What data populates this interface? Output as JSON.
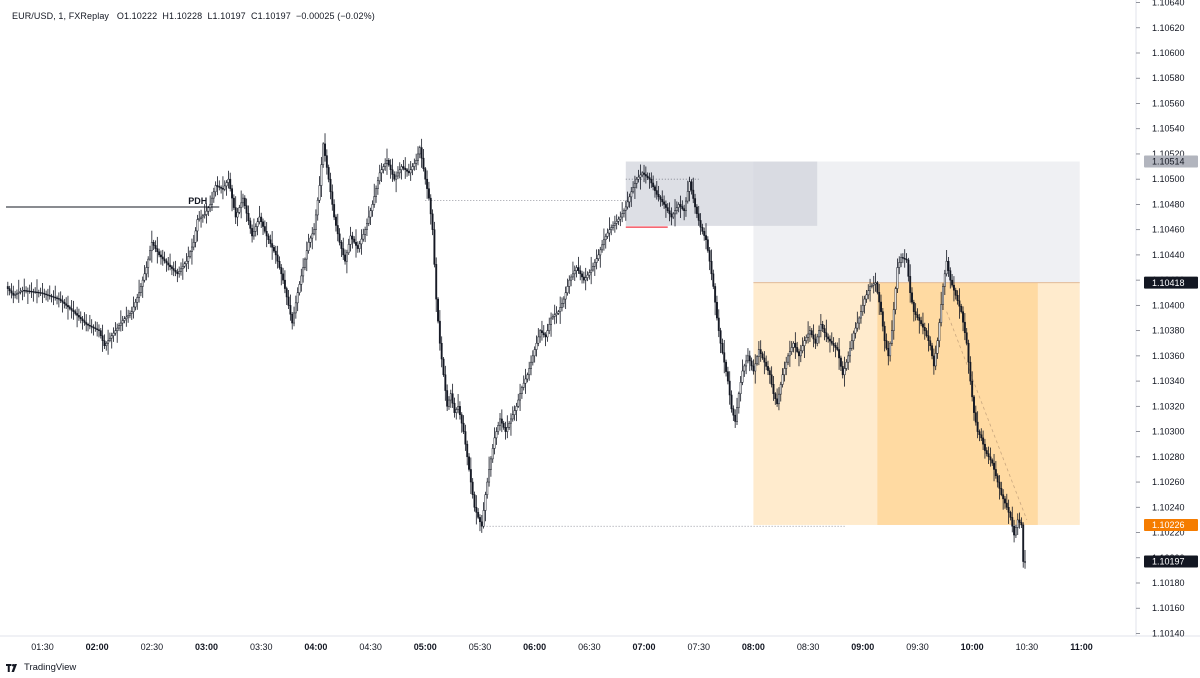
{
  "legend": {
    "symbol": "EUR/USD, 1, FXReplay",
    "open": "O1.10222",
    "high": "H1.10228",
    "low": "L1.10197",
    "close": "C1.10197",
    "change": "−0.00025 (−0.02%)"
  },
  "brand": {
    "name": "TradingView",
    "icon": "tradingview-logo-icon"
  },
  "chart_data": {
    "type": "candlestick",
    "title": "",
    "symbol": "EUR/USD",
    "timeframe": "1",
    "xlabel": "",
    "ylabel": "",
    "x_ticks": [
      "01:30",
      "02:00",
      "02:30",
      "03:00",
      "03:30",
      "04:00",
      "04:30",
      "05:00",
      "05:30",
      "06:00",
      "06:30",
      "07:00",
      "07:30",
      "08:00",
      "08:30",
      "09:00",
      "09:30",
      "10:00",
      "10:30",
      "11:00"
    ],
    "x_ticks_bold": [
      "02:00",
      "03:00",
      "04:00",
      "05:00",
      "06:00",
      "07:00",
      "08:00",
      "09:00",
      "10:00",
      "11:00"
    ],
    "y_ticks": [
      "1.10640",
      "1.10620",
      "1.10600",
      "1.10580",
      "1.10560",
      "1.10540",
      "1.10520",
      "1.10500",
      "1.10480",
      "1.10460",
      "1.10440",
      "1.10420",
      "1.10400",
      "1.10380",
      "1.10360",
      "1.10340",
      "1.10320",
      "1.10300",
      "1.10280",
      "1.10260",
      "1.10240",
      "1.10220",
      "1.10200",
      "1.10180",
      "1.10160",
      "1.10140"
    ],
    "ylim": [
      1.10138,
      1.10642
    ],
    "xlim_minutes": [
      70,
      680
    ],
    "price_series": [
      {
        "t": 71,
        "p": 1.10415
      },
      {
        "t": 75,
        "p": 1.10408
      },
      {
        "t": 80,
        "p": 1.10412
      },
      {
        "t": 90,
        "p": 1.1041
      },
      {
        "t": 100,
        "p": 1.10405
      },
      {
        "t": 108,
        "p": 1.10395
      },
      {
        "t": 115,
        "p": 1.10385
      },
      {
        "t": 122,
        "p": 1.1038
      },
      {
        "t": 125,
        "p": 1.10368
      },
      {
        "t": 130,
        "p": 1.10378
      },
      {
        "t": 135,
        "p": 1.10388
      },
      {
        "t": 140,
        "p": 1.10395
      },
      {
        "t": 144,
        "p": 1.1041
      },
      {
        "t": 148,
        "p": 1.1043
      },
      {
        "t": 151,
        "p": 1.1045
      },
      {
        "t": 155,
        "p": 1.1044
      },
      {
        "t": 160,
        "p": 1.10432
      },
      {
        "t": 165,
        "p": 1.10425
      },
      {
        "t": 170,
        "p": 1.10435
      },
      {
        "t": 174,
        "p": 1.1045
      },
      {
        "t": 176,
        "p": 1.10468
      },
      {
        "t": 180,
        "p": 1.10472
      },
      {
        "t": 183,
        "p": 1.1048
      },
      {
        "t": 186,
        "p": 1.10495
      },
      {
        "t": 190,
        "p": 1.10492
      },
      {
        "t": 193,
        "p": 1.105
      },
      {
        "t": 197,
        "p": 1.1047
      },
      {
        "t": 201,
        "p": 1.10485
      },
      {
        "t": 206,
        "p": 1.10455
      },
      {
        "t": 210,
        "p": 1.1047
      },
      {
        "t": 214,
        "p": 1.10455
      },
      {
        "t": 219,
        "p": 1.1044
      },
      {
        "t": 223,
        "p": 1.1042
      },
      {
        "t": 226,
        "p": 1.104
      },
      {
        "t": 228,
        "p": 1.10386
      },
      {
        "t": 231,
        "p": 1.1041
      },
      {
        "t": 234,
        "p": 1.1043
      },
      {
        "t": 237,
        "p": 1.1045
      },
      {
        "t": 240,
        "p": 1.1046
      },
      {
        "t": 243,
        "p": 1.10495
      },
      {
        "t": 245,
        "p": 1.10528
      },
      {
        "t": 248,
        "p": 1.105
      },
      {
        "t": 251,
        "p": 1.1047
      },
      {
        "t": 254,
        "p": 1.1045
      },
      {
        "t": 257,
        "p": 1.10435
      },
      {
        "t": 260,
        "p": 1.10455
      },
      {
        "t": 264,
        "p": 1.10445
      },
      {
        "t": 268,
        "p": 1.1046
      },
      {
        "t": 272,
        "p": 1.1048
      },
      {
        "t": 276,
        "p": 1.10505
      },
      {
        "t": 280,
        "p": 1.10515
      },
      {
        "t": 284,
        "p": 1.105
      },
      {
        "t": 288,
        "p": 1.1051
      },
      {
        "t": 292,
        "p": 1.10505
      },
      {
        "t": 296,
        "p": 1.10515
      },
      {
        "t": 298,
        "p": 1.10525
      },
      {
        "t": 301,
        "p": 1.105
      },
      {
        "t": 303,
        "p": 1.10485
      },
      {
        "t": 305,
        "p": 1.1046
      },
      {
        "t": 307,
        "p": 1.10405
      },
      {
        "t": 309,
        "p": 1.1037
      },
      {
        "t": 311,
        "p": 1.10345
      },
      {
        "t": 313,
        "p": 1.1032
      },
      {
        "t": 315,
        "p": 1.1033
      },
      {
        "t": 317,
        "p": 1.10315
      },
      {
        "t": 319,
        "p": 1.1032
      },
      {
        "t": 322,
        "p": 1.103
      },
      {
        "t": 324,
        "p": 1.1028
      },
      {
        "t": 326,
        "p": 1.1026
      },
      {
        "t": 328,
        "p": 1.1024
      },
      {
        "t": 330,
        "p": 1.10232
      },
      {
        "t": 332,
        "p": 1.10225
      },
      {
        "t": 334,
        "p": 1.1025
      },
      {
        "t": 336,
        "p": 1.1027
      },
      {
        "t": 339,
        "p": 1.10295
      },
      {
        "t": 342,
        "p": 1.1031
      },
      {
        "t": 345,
        "p": 1.103
      },
      {
        "t": 348,
        "p": 1.1031
      },
      {
        "t": 351,
        "p": 1.1032
      },
      {
        "t": 354,
        "p": 1.10335
      },
      {
        "t": 357,
        "p": 1.10345
      },
      {
        "t": 360,
        "p": 1.1036
      },
      {
        "t": 364,
        "p": 1.1038
      },
      {
        "t": 367,
        "p": 1.10375
      },
      {
        "t": 370,
        "p": 1.1039
      },
      {
        "t": 374,
        "p": 1.10395
      },
      {
        "t": 377,
        "p": 1.10405
      },
      {
        "t": 380,
        "p": 1.1042
      },
      {
        "t": 384,
        "p": 1.1043
      },
      {
        "t": 388,
        "p": 1.1042
      },
      {
        "t": 392,
        "p": 1.10428
      },
      {
        "t": 396,
        "p": 1.1044
      },
      {
        "t": 399,
        "p": 1.10452
      },
      {
        "t": 402,
        "p": 1.1046
      },
      {
        "t": 405,
        "p": 1.10465
      },
      {
        "t": 408,
        "p": 1.1047
      },
      {
        "t": 411,
        "p": 1.10478
      },
      {
        "t": 414,
        "p": 1.1049
      },
      {
        "t": 417,
        "p": 1.105
      },
      {
        "t": 420,
        "p": 1.10505
      },
      {
        "t": 424,
        "p": 1.105
      },
      {
        "t": 428,
        "p": 1.10488
      },
      {
        "t": 432,
        "p": 1.1048
      },
      {
        "t": 436,
        "p": 1.1047
      },
      {
        "t": 440,
        "p": 1.1048
      },
      {
        "t": 443,
        "p": 1.10475
      },
      {
        "t": 446,
        "p": 1.10498
      },
      {
        "t": 449,
        "p": 1.10478
      },
      {
        "t": 452,
        "p": 1.10462
      },
      {
        "t": 455,
        "p": 1.10452
      },
      {
        "t": 457,
        "p": 1.10435
      },
      {
        "t": 459,
        "p": 1.10415
      },
      {
        "t": 461,
        "p": 1.1039
      },
      {
        "t": 463,
        "p": 1.1037
      },
      {
        "t": 465,
        "p": 1.10355
      },
      {
        "t": 467,
        "p": 1.1034
      },
      {
        "t": 469,
        "p": 1.10318
      },
      {
        "t": 471,
        "p": 1.10308
      },
      {
        "t": 473,
        "p": 1.1033
      },
      {
        "t": 475,
        "p": 1.10348
      },
      {
        "t": 478,
        "p": 1.1036
      },
      {
        "t": 481,
        "p": 1.10348
      },
      {
        "t": 484,
        "p": 1.10365
      },
      {
        "t": 487,
        "p": 1.10355
      },
      {
        "t": 490,
        "p": 1.10345
      },
      {
        "t": 492,
        "p": 1.1033
      },
      {
        "t": 494,
        "p": 1.10322
      },
      {
        "t": 497,
        "p": 1.10345
      },
      {
        "t": 500,
        "p": 1.1036
      },
      {
        "t": 503,
        "p": 1.1037
      },
      {
        "t": 506,
        "p": 1.1036
      },
      {
        "t": 509,
        "p": 1.10372
      },
      {
        "t": 512,
        "p": 1.1038
      },
      {
        "t": 515,
        "p": 1.1037
      },
      {
        "t": 518,
        "p": 1.10385
      },
      {
        "t": 521,
        "p": 1.10375
      },
      {
        "t": 524,
        "p": 1.1037
      },
      {
        "t": 527,
        "p": 1.10365
      },
      {
        "t": 530,
        "p": 1.10345
      },
      {
        "t": 533,
        "p": 1.1036
      },
      {
        "t": 536,
        "p": 1.10378
      },
      {
        "t": 539,
        "p": 1.1039
      },
      {
        "t": 542,
        "p": 1.10405
      },
      {
        "t": 545,
        "p": 1.10415
      },
      {
        "t": 548,
        "p": 1.10418
      },
      {
        "t": 551,
        "p": 1.10395
      },
      {
        "t": 553,
        "p": 1.10372
      },
      {
        "t": 555,
        "p": 1.1036
      },
      {
        "t": 557,
        "p": 1.1038
      },
      {
        "t": 560,
        "p": 1.1043
      },
      {
        "t": 562,
        "p": 1.10438
      },
      {
        "t": 565,
        "p": 1.10436
      },
      {
        "t": 567,
        "p": 1.1041
      },
      {
        "t": 569,
        "p": 1.10395
      },
      {
        "t": 572,
        "p": 1.10388
      },
      {
        "t": 575,
        "p": 1.1038
      },
      {
        "t": 578,
        "p": 1.10368
      },
      {
        "t": 580,
        "p": 1.10352
      },
      {
        "t": 582,
        "p": 1.10372
      },
      {
        "t": 585,
        "p": 1.10415
      },
      {
        "t": 587,
        "p": 1.10435
      },
      {
        "t": 589,
        "p": 1.1042
      },
      {
        "t": 592,
        "p": 1.10408
      },
      {
        "t": 595,
        "p": 1.10395
      },
      {
        "t": 598,
        "p": 1.1037
      },
      {
        "t": 600,
        "p": 1.1034
      },
      {
        "t": 602,
        "p": 1.10315
      },
      {
        "t": 604,
        "p": 1.103
      },
      {
        "t": 606,
        "p": 1.10295
      },
      {
        "t": 608,
        "p": 1.10285
      },
      {
        "t": 610,
        "p": 1.1028
      },
      {
        "t": 612,
        "p": 1.10275
      },
      {
        "t": 614,
        "p": 1.10265
      },
      {
        "t": 617,
        "p": 1.1025
      },
      {
        "t": 620,
        "p": 1.1024
      },
      {
        "t": 622,
        "p": 1.10232
      },
      {
        "t": 624,
        "p": 1.10218
      },
      {
        "t": 626,
        "p": 1.1023
      },
      {
        "t": 628,
        "p": 1.10226
      },
      {
        "t": 629,
        "p": 1.10197
      }
    ],
    "annotations": [
      {
        "label": "PDH",
        "price": 1.10478,
        "t_start": 70,
        "t_end": 187
      },
      {
        "label": "",
        "type": "dotted-level",
        "price": 1.10483,
        "t_start": 300,
        "t_end": 412
      },
      {
        "label": "",
        "type": "dotted-level",
        "price": 1.10225,
        "t_start": 332,
        "t_end": 530
      },
      {
        "label": "",
        "type": "dotted-level",
        "price": 1.105,
        "t_start": 410,
        "t_end": 450
      },
      {
        "label": "",
        "type": "red-level",
        "price": 1.10462,
        "t_start": 410,
        "t_end": 433
      }
    ],
    "zones": [
      {
        "name": "upper-zone",
        "color": "#d1d4dc",
        "opacity": 0.35,
        "price_top": 1.10514,
        "price_bottom": 1.10418,
        "t_start": 480,
        "t_end": 659
      },
      {
        "name": "gray-box",
        "color": "#d1d4dc",
        "opacity": 0.75,
        "price_top": 1.10514,
        "price_bottom": 1.10463,
        "t_start": 410,
        "t_end": 515
      },
      {
        "name": "lower-zone",
        "color": "#ffe0b2",
        "opacity": 0.65,
        "price_top": 1.10418,
        "price_bottom": 1.10226,
        "t_start": 480,
        "t_end": 659
      },
      {
        "name": "inner-orange",
        "color": "#ffcc80",
        "opacity": 0.55,
        "price_top": 1.10418,
        "price_bottom": 1.10226,
        "t_start": 548,
        "t_end": 636
      }
    ],
    "price_labels": [
      {
        "price": 1.10514,
        "text": "1.10514",
        "bg": "#b2b5be",
        "fg": "#131722"
      },
      {
        "price": 1.10418,
        "text": "1.10418",
        "bg": "#131722",
        "fg": "#ffffff"
      },
      {
        "price": 1.10226,
        "text": "1.10226",
        "bg": "#f57c00",
        "fg": "#ffffff"
      },
      {
        "price": 1.10197,
        "text": "1.10197",
        "bg": "#131722",
        "fg": "#ffffff"
      }
    ],
    "grid": false
  }
}
